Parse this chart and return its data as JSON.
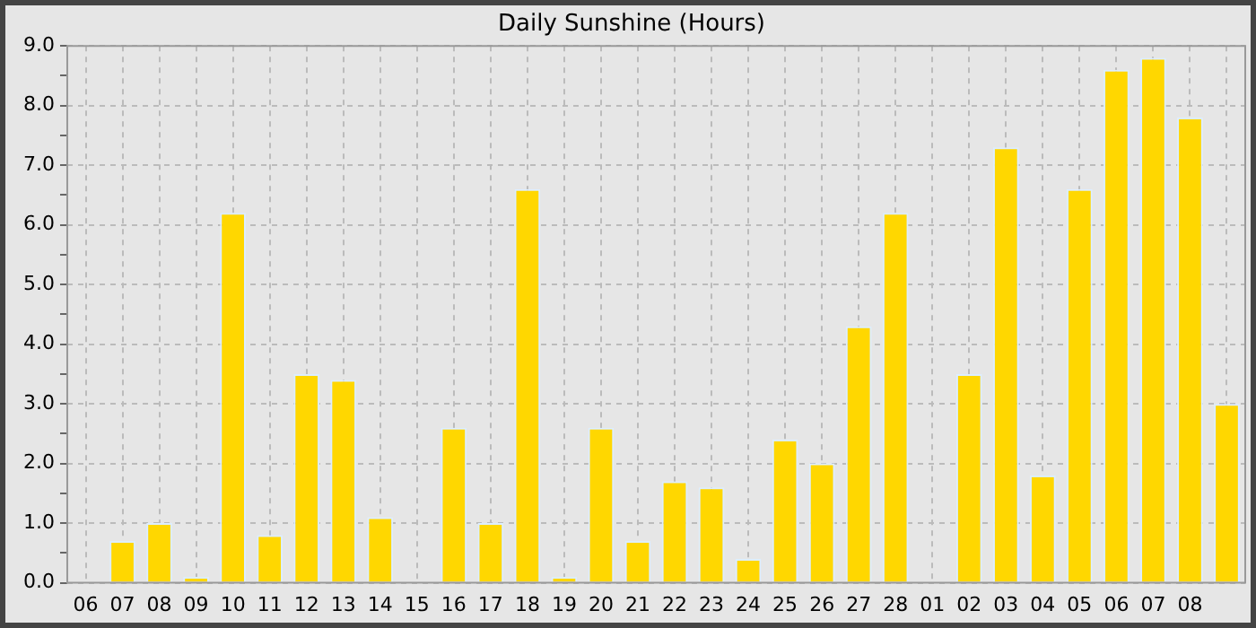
{
  "chart_data": {
    "type": "bar",
    "title": "Daily Sunshine (Hours)",
    "categories": [
      "06",
      "07",
      "08",
      "09",
      "10",
      "11",
      "12",
      "13",
      "14",
      "15",
      "16",
      "17",
      "18",
      "19",
      "20",
      "21",
      "22",
      "23",
      "24",
      "25",
      "26",
      "27",
      "28",
      "01",
      "02",
      "03",
      "04",
      "05",
      "06",
      "07",
      "08",
      null
    ],
    "values": [
      0,
      0.7,
      1.0,
      0.1,
      6.2,
      0.8,
      3.5,
      3.4,
      1.1,
      0,
      2.6,
      1.0,
      6.6,
      0.1,
      2.6,
      0.7,
      1.7,
      1.6,
      0.4,
      2.4,
      2.0,
      4.3,
      6.2,
      0,
      3.5,
      7.3,
      1.8,
      6.6,
      8.6,
      8.8,
      7.8,
      3.0
    ],
    "color": "#ffd700",
    "ylim": [
      0,
      9
    ],
    "yticks": [
      {
        "value": 0,
        "label": "0.0"
      },
      {
        "value": 0.5,
        "label": null
      },
      {
        "value": 1,
        "label": "1.0"
      },
      {
        "value": 1.5,
        "label": null
      },
      {
        "value": 2,
        "label": "2.0"
      },
      {
        "value": 2.5,
        "label": null
      },
      {
        "value": 3,
        "label": "3.0"
      },
      {
        "value": 3.5,
        "label": null
      },
      {
        "value": 4,
        "label": "4.0"
      },
      {
        "value": 4.5,
        "label": null
      },
      {
        "value": 5,
        "label": "5.0"
      },
      {
        "value": 5.5,
        "label": null
      },
      {
        "value": 6,
        "label": "6.0"
      },
      {
        "value": 6.5,
        "label": null
      },
      {
        "value": 7,
        "label": "7.0"
      },
      {
        "value": 7.5,
        "label": null
      },
      {
        "value": 8,
        "label": "8.0"
      },
      {
        "value": 8.5,
        "label": null
      },
      {
        "value": 9,
        "label": "9.0"
      }
    ],
    "grid": true,
    "legend": false
  }
}
